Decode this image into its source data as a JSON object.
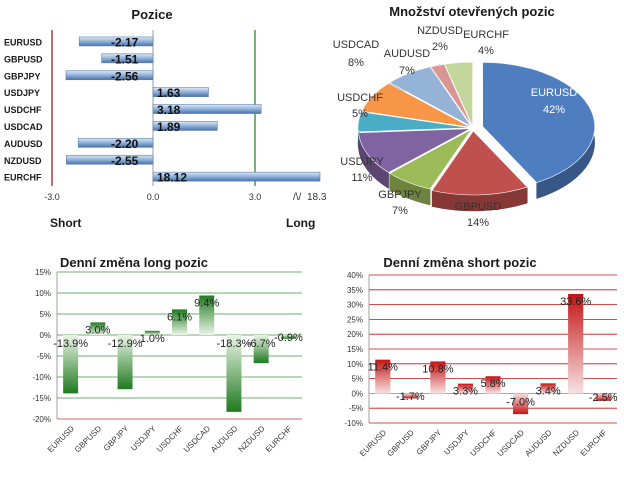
{
  "chart_data": [
    {
      "type": "bar",
      "orientation": "horizontal",
      "title": "Pozice",
      "categories": [
        "EURUSD",
        "GBPUSD",
        "GBPJPY",
        "USDJPY",
        "USDCHF",
        "USDCAD",
        "AUDUSD",
        "NZDUSD",
        "EURCHF"
      ],
      "values": [
        -2.17,
        -1.51,
        -2.56,
        1.63,
        3.18,
        1.89,
        -2.2,
        -2.55,
        18.12
      ],
      "value_labels": [
        "-2.17",
        "-1.51",
        "-2.56",
        "1.63",
        "3.18",
        "1.89",
        "-2.20",
        "-2.55",
        "18.12"
      ],
      "xlim": [
        -3.0,
        3.0
      ],
      "x_ticks": [
        "-3.0",
        "0.0",
        "3.0"
      ],
      "axis_break_label": "18.3",
      "left_label": "Short",
      "right_label": "Long",
      "colors": {
        "bar_dark": "#4a73a8",
        "bar_light": "#dce8f6",
        "left_line": "#b53a3a",
        "right_line": "#4a9a4a",
        "zero_line": "#888888"
      }
    },
    {
      "type": "pie",
      "title": "Množství otevřených pozic",
      "slices": [
        {
          "label": "EURUSD",
          "value": 42,
          "pct": "42%",
          "color": "#4f7ec0"
        },
        {
          "label": "GBPUSD",
          "value": 14,
          "pct": "14%",
          "color": "#c0504d"
        },
        {
          "label": "GBPJPY",
          "value": 7,
          "pct": "7%",
          "color": "#9bbb59"
        },
        {
          "label": "USDJPY",
          "value": 11,
          "pct": "11%",
          "color": "#8064a2"
        },
        {
          "label": "USDCHF",
          "value": 5,
          "pct": "5%",
          "color": "#4bacc6"
        },
        {
          "label": "USDCAD",
          "value": 8,
          "pct": "8%",
          "color": "#f79646"
        },
        {
          "label": "AUDUSD",
          "value": 7,
          "pct": "7%",
          "color": "#95b3d7"
        },
        {
          "label": "NZDUSD",
          "value": 2,
          "pct": "2%",
          "color": "#d99694"
        },
        {
          "label": "EURCHF",
          "value": 4,
          "pct": "4%",
          "color": "#c3d69b"
        }
      ]
    },
    {
      "type": "bar",
      "title": "Denní změna long pozic",
      "categories": [
        "EURUSD",
        "GBPUSD",
        "GBPJPY",
        "USDJPY",
        "USDCHF",
        "USDCAD",
        "AUDUSD",
        "NZDUSD",
        "EURCHF"
      ],
      "values": [
        -13.9,
        3.0,
        -12.9,
        1.0,
        6.1,
        9.4,
        -18.3,
        -6.7,
        -0.9
      ],
      "value_labels": [
        "-13.9%",
        "3.0%",
        "-12.9%",
        "1.0%",
        "6.1%",
        "9.4%",
        "-18.3%",
        "-6.7%",
        "-0.9%"
      ],
      "ylim": [
        -20,
        15
      ],
      "y_ticks": [
        "15%",
        "10%",
        "5%",
        "0%",
        "-5%",
        "-10%",
        "-15%",
        "-20%"
      ],
      "grid": true,
      "colors": {
        "bar": "#2e8b2e",
        "bar_light": "#e4f2e0",
        "grid": "#3a9a3a",
        "bottom_line": "#b53a3a"
      }
    },
    {
      "type": "bar",
      "title": "Denní změna short pozic",
      "categories": [
        "EURUSD",
        "GBPUSD",
        "GBPJPY",
        "USDJPY",
        "USDCHF",
        "USDCAD",
        "AUDUSD",
        "NZDUSD",
        "EURCHF"
      ],
      "values": [
        11.4,
        -1.7,
        10.8,
        3.3,
        5.8,
        -7.0,
        3.4,
        33.6,
        -2.5
      ],
      "value_labels": [
        "11.4%",
        "-1.7%",
        "10.8%",
        "3.3%",
        "5.8%",
        "-7.0%",
        "3.4%",
        "33.6%",
        "-2.5%"
      ],
      "ylim": [
        -10,
        40
      ],
      "y_ticks": [
        "40%",
        "35%",
        "30%",
        "25%",
        "20%",
        "15%",
        "10%",
        "5%",
        "0%",
        "-5%",
        "-10%"
      ],
      "grid": true,
      "colors": {
        "bar": "#c41414",
        "bar_light": "#f7e2e2",
        "grid": "#c41414",
        "zero_line": "#888888"
      }
    }
  ]
}
